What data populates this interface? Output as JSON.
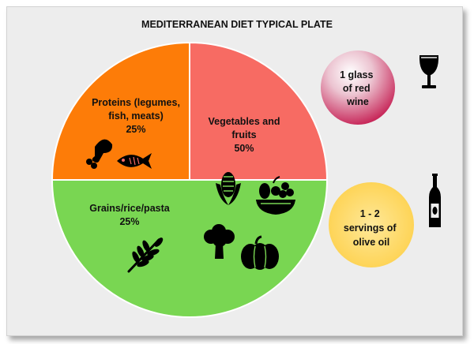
{
  "chart_data": {
    "type": "pie",
    "title": "MEDITERRANEAN DIET TYPICAL PLATE",
    "slices": [
      {
        "label_lines": [
          "Proteins (legumes,",
          "fish, meats)",
          "25%"
        ],
        "value": 25,
        "color": "#f76b63"
      },
      {
        "label_lines": [
          "Vegetables and",
          "fruits",
          "50%"
        ],
        "value": 50,
        "color": "#79d652"
      },
      {
        "label_lines": [
          "Grains/rice/pasta",
          "25%"
        ],
        "value": 25,
        "color": "#fd7c08"
      }
    ],
    "extras": [
      {
        "label_lines": [
          "1  glass",
          "of red",
          "wine"
        ],
        "color": "#c41a4f",
        "icon": "wine-glass-icon"
      },
      {
        "label_lines": [
          "1  - 2",
          "servings of",
          "olive oil"
        ],
        "color": "#fdd452",
        "icon": "olive-oil-bottle-icon"
      }
    ]
  },
  "icons": {
    "proteins": [
      "chicken-leg-icon",
      "fish-icon"
    ],
    "grains": "wheat-icon",
    "vegetables": [
      "corn-icon",
      "fruit-bowl-icon",
      "broccoli-icon",
      "pumpkin-icon"
    ]
  }
}
